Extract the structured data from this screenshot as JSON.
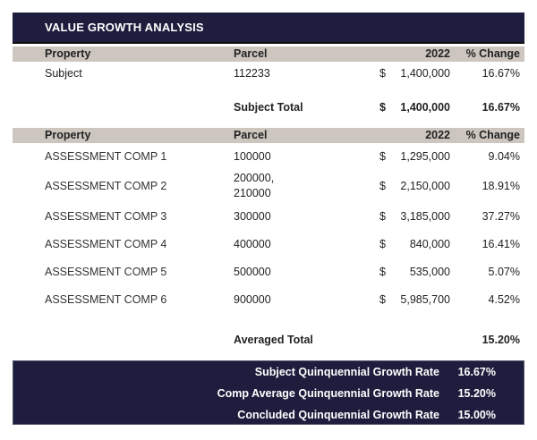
{
  "title": "VALUE GROWTH ANALYSIS",
  "columns": {
    "property": "Property",
    "parcel": "Parcel",
    "year": "2022",
    "change": "% Change"
  },
  "subject": {
    "property": "Subject",
    "parcel": "112233",
    "currency": "$",
    "value": "1,400,000",
    "change": "16.67%"
  },
  "subject_total": {
    "label": "Subject Total",
    "currency": "$",
    "value": "1,400,000",
    "change": "16.67%"
  },
  "comps": [
    {
      "property": "ASSESSMENT COMP 1",
      "parcel": "100000",
      "currency": "$",
      "value": "1,295,000",
      "change": "9.04%"
    },
    {
      "property": "ASSESSMENT COMP 2",
      "parcel": "200000,\n210000",
      "currency": "$",
      "value": "2,150,000",
      "change": "18.91%"
    },
    {
      "property": "ASSESSMENT COMP 3",
      "parcel": "300000",
      "currency": "$",
      "value": "3,185,000",
      "change": "37.27%"
    },
    {
      "property": "ASSESSMENT COMP 4",
      "parcel": "400000",
      "currency": "$",
      "value": "840,000",
      "change": "16.41%"
    },
    {
      "property": "ASSESSMENT COMP 5",
      "parcel": "500000",
      "currency": "$",
      "value": "535,000",
      "change": "5.07%"
    },
    {
      "property": "ASSESSMENT COMP 6",
      "parcel": "900000",
      "currency": "$",
      "value": "5,985,700",
      "change": "4.52%"
    }
  ],
  "averaged_total": {
    "label": "Averaged Total",
    "change": "15.20%"
  },
  "summary": [
    {
      "label": "Subject Quinquennial Growth Rate",
      "value": "16.67%"
    },
    {
      "label": "Comp Average Quinquennial Growth Rate",
      "value": "15.20%"
    },
    {
      "label": "Concluded Quinquennial Growth Rate",
      "value": "15.00%"
    }
  ],
  "colors": {
    "navy": "#1e1d3d",
    "header_gray": "#cdc6bf"
  }
}
